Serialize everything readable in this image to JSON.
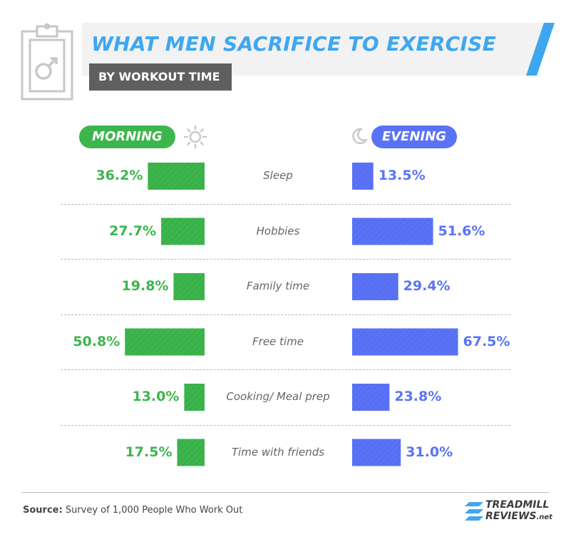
{
  "header": {
    "title": "WHAT MEN SACRIFICE TO EXERCISE",
    "subtitle": "BY WORKOUT TIME"
  },
  "icons": {
    "clipboard": "clipboard-male-icon",
    "sun": "sun-icon",
    "moon": "moon-icon",
    "logo": "treadmill-reviews-logo-icon"
  },
  "colors": {
    "title": "#3ea7f0",
    "morning": "#3cb64c",
    "evening": "#5a73f6",
    "subtitle_bg": "#5f5f5f"
  },
  "chart_data": {
    "type": "bar",
    "categories": [
      "Sleep",
      "Hobbies",
      "Family time",
      "Free time",
      "Cooking/ Meal prep",
      "Time with friends"
    ],
    "series": [
      {
        "name": "MORNING",
        "values": [
          36.2,
          27.7,
          19.8,
          50.8,
          13.0,
          17.5
        ],
        "labels": [
          "36.2%",
          "27.7%",
          "19.8%",
          "50.8%",
          "13.0%",
          "17.5%"
        ]
      },
      {
        "name": "EVENING",
        "values": [
          13.5,
          51.6,
          29.4,
          67.5,
          23.8,
          31.0
        ],
        "labels": [
          "13.5%",
          "51.6%",
          "29.4%",
          "67.5%",
          "23.8%",
          "31.0%"
        ]
      }
    ],
    "value_max": 67.5
  },
  "footer": {
    "source_label": "Source:",
    "source_text": "Survey of 1,000 People Who Work Out",
    "logo_line1": "TREADMILL",
    "logo_line2": "REVIEWS",
    "logo_suffix": ".net"
  }
}
